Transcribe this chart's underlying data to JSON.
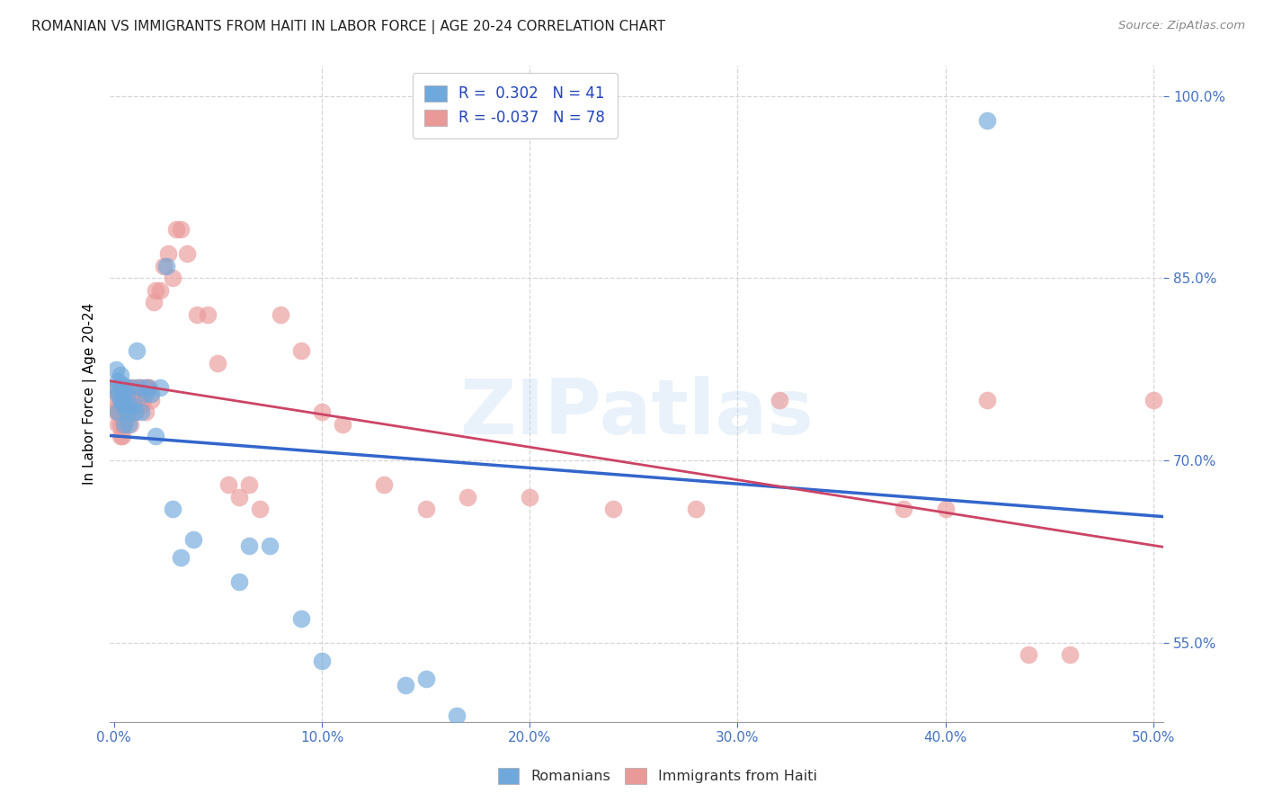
{
  "title": "ROMANIAN VS IMMIGRANTS FROM HAITI IN LABOR FORCE | AGE 20-24 CORRELATION CHART",
  "source": "Source: ZipAtlas.com",
  "ylabel_label": "In Labor Force | Age 20-24",
  "xlim": [
    -0.002,
    0.505
  ],
  "ylim": [
    0.485,
    1.025
  ],
  "r_romanian": 0.302,
  "n_romanian": 41,
  "r_haiti": -0.037,
  "n_haiti": 78,
  "blue_color": "#6fa8dc",
  "pink_color": "#ea9999",
  "blue_line_color": "#3366cc",
  "pink_line_color": "#cc4466",
  "watermark": "ZIPatlas",
  "romanian_x": [
    0.001,
    0.001,
    0.002,
    0.002,
    0.002,
    0.003,
    0.003,
    0.003,
    0.004,
    0.004,
    0.004,
    0.005,
    0.005,
    0.006,
    0.006,
    0.007,
    0.007,
    0.008,
    0.009,
    0.01,
    0.011,
    0.012,
    0.013,
    0.015,
    0.016,
    0.018,
    0.02,
    0.022,
    0.025,
    0.028,
    0.032,
    0.038,
    0.06,
    0.065,
    0.075,
    0.09,
    0.1,
    0.14,
    0.15,
    0.165,
    0.42
  ],
  "romanian_y": [
    0.76,
    0.775,
    0.755,
    0.74,
    0.765,
    0.75,
    0.76,
    0.77,
    0.748,
    0.755,
    0.762,
    0.73,
    0.745,
    0.74,
    0.755,
    0.73,
    0.745,
    0.76,
    0.745,
    0.74,
    0.79,
    0.76,
    0.74,
    0.755,
    0.76,
    0.755,
    0.72,
    0.76,
    0.86,
    0.66,
    0.62,
    0.635,
    0.6,
    0.63,
    0.63,
    0.57,
    0.535,
    0.515,
    0.52,
    0.49,
    0.98
  ],
  "haiti_x": [
    0.001,
    0.001,
    0.001,
    0.002,
    0.002,
    0.002,
    0.002,
    0.003,
    0.003,
    0.003,
    0.003,
    0.004,
    0.004,
    0.004,
    0.004,
    0.005,
    0.005,
    0.005,
    0.005,
    0.006,
    0.006,
    0.006,
    0.007,
    0.007,
    0.007,
    0.008,
    0.008,
    0.008,
    0.009,
    0.009,
    0.01,
    0.01,
    0.011,
    0.011,
    0.012,
    0.012,
    0.013,
    0.013,
    0.014,
    0.014,
    0.015,
    0.015,
    0.016,
    0.017,
    0.018,
    0.019,
    0.02,
    0.022,
    0.024,
    0.026,
    0.028,
    0.03,
    0.032,
    0.035,
    0.04,
    0.045,
    0.05,
    0.055,
    0.06,
    0.065,
    0.07,
    0.08,
    0.09,
    0.1,
    0.11,
    0.13,
    0.15,
    0.17,
    0.2,
    0.24,
    0.28,
    0.32,
    0.38,
    0.4,
    0.42,
    0.44,
    0.46,
    0.5
  ],
  "haiti_y": [
    0.75,
    0.76,
    0.74,
    0.745,
    0.755,
    0.74,
    0.73,
    0.75,
    0.74,
    0.73,
    0.72,
    0.755,
    0.745,
    0.735,
    0.72,
    0.76,
    0.75,
    0.74,
    0.73,
    0.755,
    0.745,
    0.735,
    0.76,
    0.75,
    0.74,
    0.755,
    0.745,
    0.73,
    0.76,
    0.75,
    0.755,
    0.74,
    0.76,
    0.75,
    0.76,
    0.75,
    0.755,
    0.745,
    0.76,
    0.75,
    0.76,
    0.74,
    0.76,
    0.76,
    0.75,
    0.83,
    0.84,
    0.84,
    0.86,
    0.87,
    0.85,
    0.89,
    0.89,
    0.87,
    0.82,
    0.82,
    0.78,
    0.68,
    0.67,
    0.68,
    0.66,
    0.82,
    0.79,
    0.74,
    0.73,
    0.68,
    0.66,
    0.67,
    0.67,
    0.66,
    0.66,
    0.75,
    0.66,
    0.66,
    0.75,
    0.54,
    0.54,
    0.75
  ]
}
